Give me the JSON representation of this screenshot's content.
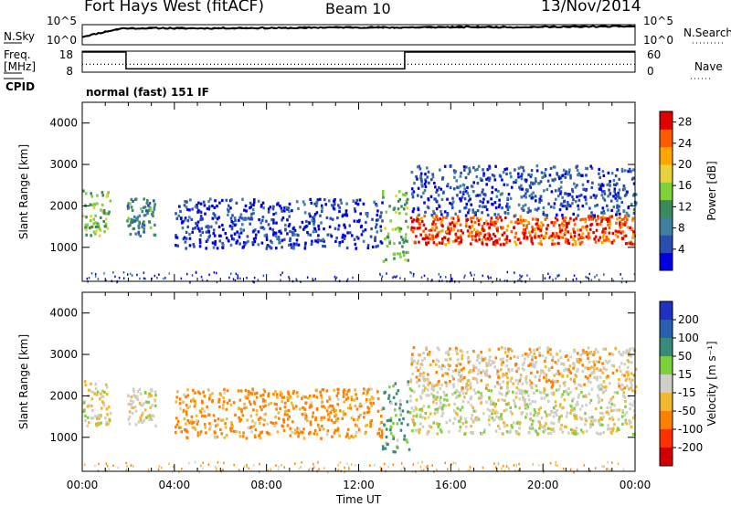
{
  "header": {
    "station": "Fort Hays West (fitACF)",
    "beam": "Beam 10",
    "date": "13/Nov/2014"
  },
  "chart_data": [
    {
      "type": "line",
      "panel": "noise",
      "left_label": "N.Sky",
      "right_label": "N.Search",
      "left_ticks": [
        "10^5",
        "10^0"
      ],
      "right_ticks": [
        "10^5",
        "10^0"
      ],
      "scale": "log",
      "series": [
        {
          "values_log10": [
            2.0,
            4.1,
            4.15,
            4.1,
            4.2,
            4.15,
            4.3,
            4.35,
            4.3,
            4.4,
            4.45,
            4.4,
            4.5,
            4.55,
            4.6
          ]
        },
        {
          "values_log10": [
            2.0,
            4.0,
            4.05,
            4.0,
            4.1,
            4.1,
            4.2,
            4.25,
            4.2,
            4.3,
            4.35,
            4.3,
            4.4,
            4.45,
            4.5
          ]
        }
      ]
    },
    {
      "type": "line",
      "panel": "frequency",
      "left_label": "Freq.",
      "left_unit": "[MHz]",
      "left_ticks": [
        "18",
        "8"
      ],
      "right_label": "Nave",
      "right_ticks": [
        "60",
        "0"
      ],
      "series": [
        {
          "name": "Freq.",
          "x": [
            0.0,
            1.9,
            1.9,
            14.0,
            14.0,
            24.0
          ],
          "y": [
            18,
            18,
            10,
            10,
            18,
            18
          ]
        },
        {
          "name": "Nave",
          "x": [
            0,
            24
          ],
          "y": [
            12,
            12
          ]
        }
      ]
    },
    {
      "type": "label",
      "panel": "cpid",
      "left_label": "CPID",
      "text": "normal (fast) 151 IF"
    },
    {
      "type": "heatmap",
      "panel": "power",
      "ylabel": "Slant Range [km]",
      "yticks": [
        "1000",
        "2000",
        "3000",
        "4000"
      ],
      "ylim": [
        180,
        4500
      ],
      "xlim": [
        0,
        24
      ],
      "colorbar_label": "Power [dB]",
      "colorbar_ticks": [
        "4",
        "8",
        "12",
        "16",
        "20",
        "24",
        "28"
      ],
      "colorbar_range": [
        0,
        30
      ],
      "colors": [
        "#0000e0",
        "#2a4db0",
        "#3f7fa0",
        "#3b8a5a",
        "#7fd13a",
        "#e8d23a",
        "#ffa500",
        "#ff5a00",
        "#e00000"
      ],
      "regions": [
        {
          "t": [
            0.0,
            1.2
          ],
          "range": [
            1300,
            2400
          ],
          "power": 14
        },
        {
          "t": [
            1.9,
            3.2
          ],
          "range": [
            1300,
            2200
          ],
          "power": 10
        },
        {
          "t": [
            4.0,
            13.0
          ],
          "range": [
            1000,
            2200
          ],
          "power": 4
        },
        {
          "t": [
            13.0,
            14.2
          ],
          "range": [
            650,
            2400
          ],
          "power": 14
        },
        {
          "t": [
            14.2,
            24.0
          ],
          "range": [
            1100,
            1800
          ],
          "power": 26
        },
        {
          "t": [
            14.2,
            24.0
          ],
          "range": [
            1800,
            3000
          ],
          "power": 5
        }
      ]
    },
    {
      "type": "heatmap",
      "panel": "velocity",
      "ylabel": "Slant Range [km]",
      "yticks": [
        "1000",
        "2000",
        "3000",
        "4000"
      ],
      "ylim": [
        180,
        4500
      ],
      "xlim": [
        0,
        24
      ],
      "xlabel": "Time UT",
      "xticks": [
        "00:00",
        "04:00",
        "08:00",
        "12:00",
        "16:00",
        "20:00",
        "00:00"
      ],
      "colorbar_label": "Velocity [m s⁻¹]",
      "colorbar_ticks": [
        "200",
        "100",
        "50",
        "15",
        "-15",
        "-50",
        "-100",
        "-200"
      ],
      "colors": [
        "#2030c0",
        "#2a5fb0",
        "#3a8a7a",
        "#7ad13a",
        "#cfcfc8",
        "#f0b830",
        "#ff8000",
        "#ff3000",
        "#d00000"
      ],
      "regions": [
        {
          "t": [
            0.0,
            1.2
          ],
          "range": [
            1300,
            2400
          ],
          "velocity": 0
        },
        {
          "t": [
            1.9,
            3.2
          ],
          "range": [
            1300,
            2200
          ],
          "velocity": 0
        },
        {
          "t": [
            4.0,
            13.0
          ],
          "range": [
            1000,
            2200
          ],
          "velocity": -40
        },
        {
          "t": [
            13.0,
            14.2
          ],
          "range": [
            650,
            2400
          ],
          "velocity": 40
        },
        {
          "t": [
            14.2,
            24.0
          ],
          "range": [
            1100,
            2200
          ],
          "velocity": 0
        },
        {
          "t": [
            14.2,
            24.0
          ],
          "range": [
            2200,
            3200
          ],
          "velocity": -15
        }
      ]
    }
  ]
}
